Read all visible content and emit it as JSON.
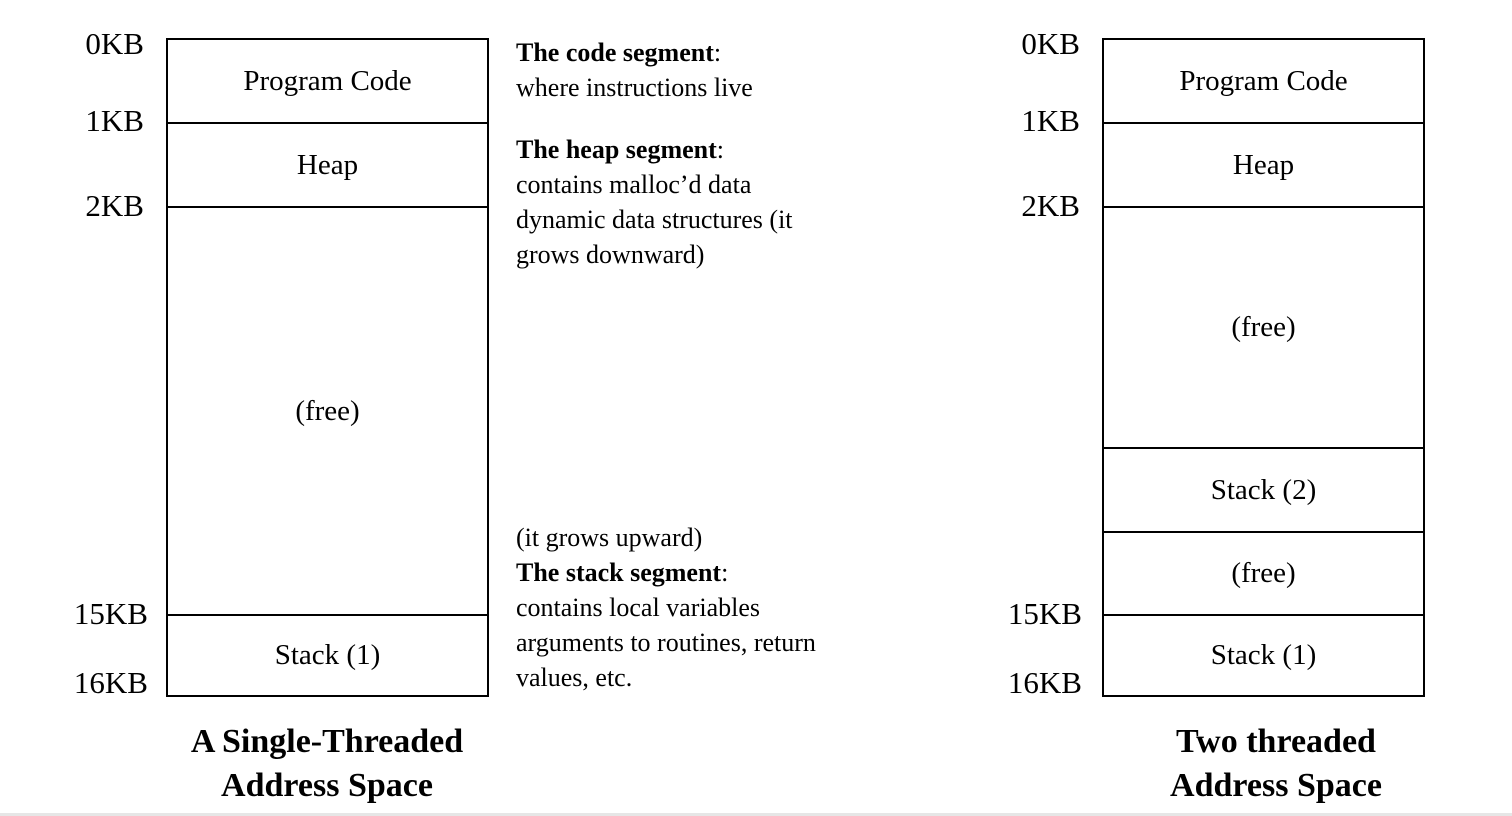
{
  "left": {
    "ticks": [
      "0KB",
      "1KB",
      "2KB",
      "15KB",
      "16KB"
    ],
    "segments": [
      "Program Code",
      "Heap",
      "(free)",
      "Stack (1)"
    ],
    "caption": [
      "A Single-Threaded",
      "Address Space"
    ]
  },
  "right": {
    "ticks": [
      "0KB",
      "1KB",
      "2KB",
      "15KB",
      "16KB"
    ],
    "segments": [
      "Program Code",
      "Heap",
      "(free)",
      "Stack (2)",
      "(free)",
      "Stack (1)"
    ],
    "caption": [
      "Two threaded",
      "Address Space"
    ]
  },
  "notes": {
    "code": {
      "title": "The code segment",
      "lines": [
        "where instructions live"
      ]
    },
    "heap": {
      "title": "The heap segment",
      "lines": [
        "contains malloc’d data",
        "dynamic data structures (it",
        "grows downward)"
      ]
    },
    "stack": {
      "pre": "(it grows upward)",
      "title": "The stack segment",
      "lines": [
        "contains local variables",
        "arguments to routines, return",
        "values, etc."
      ]
    }
  }
}
